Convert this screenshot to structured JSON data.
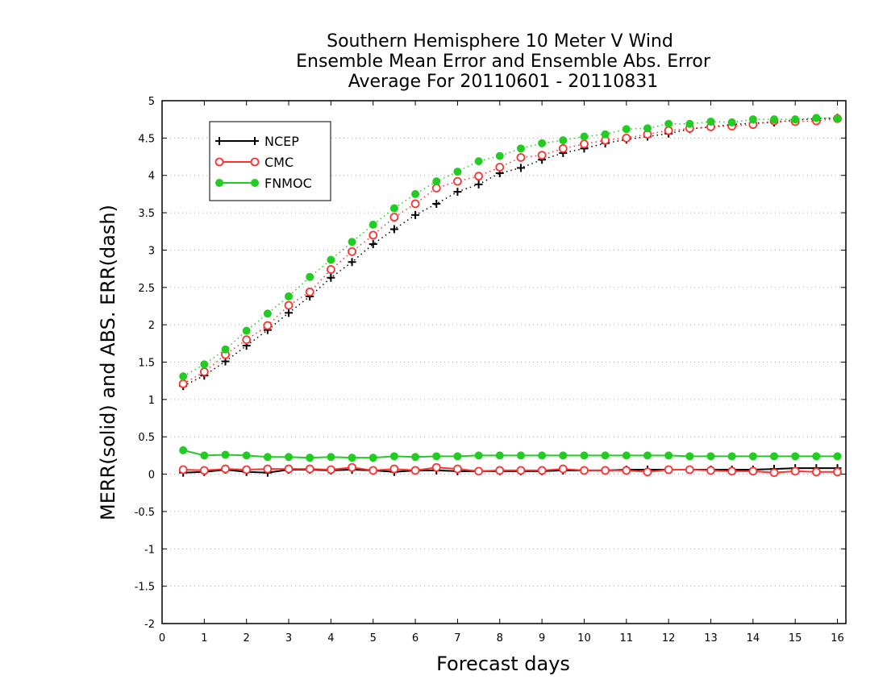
{
  "chart_data": {
    "type": "line",
    "title": [
      "Southern Hemisphere 10 Meter V Wind",
      "Ensemble Mean Error and Ensemble Abs. Error",
      "Average For 20110601 - 20110831"
    ],
    "xlabel": "Forecast days",
    "ylabel": "MERR(solid) and ABS. ERR(dash)",
    "xlim": [
      0,
      16.2
    ],
    "ylim": [
      -2,
      5
    ],
    "xticks": [
      0,
      1,
      2,
      3,
      4,
      5,
      6,
      7,
      8,
      9,
      10,
      11,
      12,
      13,
      14,
      15,
      16
    ],
    "yticks": [
      -2,
      -1.5,
      -1,
      -0.5,
      0,
      0.5,
      1,
      1.5,
      2,
      2.5,
      3,
      3.5,
      4,
      4.5,
      5
    ],
    "ytick_labels": [
      "-2",
      "-1.5",
      "-1",
      "-0.5",
      "0",
      "0.5",
      "1",
      "1.5",
      "2",
      "2.5",
      "3",
      "3.5",
      "4",
      "4.5",
      "5"
    ],
    "grid": "horizontal dotted",
    "legend_position": "top-left",
    "x": [
      0.5,
      1,
      1.5,
      2,
      2.5,
      3,
      3.5,
      4,
      4.5,
      5,
      5.5,
      6,
      6.5,
      7,
      7.5,
      8,
      8.5,
      9,
      9.5,
      10,
      10.5,
      11,
      11.5,
      12,
      12.5,
      13,
      13.5,
      14,
      14.5,
      15,
      15.5,
      16
    ],
    "series": [
      {
        "name": "NCEP",
        "color": "#000000",
        "marker": "plus",
        "merr": [
          0.02,
          0.03,
          0.06,
          0.03,
          0.02,
          0.06,
          0.06,
          0.05,
          0.06,
          0.05,
          0.03,
          0.05,
          0.05,
          0.04,
          0.04,
          0.04,
          0.04,
          0.04,
          0.05,
          0.05,
          0.05,
          0.06,
          0.06,
          0.06,
          0.06,
          0.06,
          0.06,
          0.06,
          0.07,
          0.08,
          0.08,
          0.08
        ],
        "abs_err": [
          1.18,
          1.32,
          1.51,
          1.72,
          1.93,
          2.16,
          2.38,
          2.63,
          2.84,
          3.08,
          3.28,
          3.47,
          3.62,
          3.78,
          3.88,
          4.03,
          4.1,
          4.21,
          4.3,
          4.36,
          4.43,
          4.48,
          4.52,
          4.56,
          4.62,
          4.65,
          4.68,
          4.7,
          4.71,
          4.74,
          4.76,
          4.77
        ]
      },
      {
        "name": "CMC",
        "color": "#ff3030",
        "marker": "open-circle",
        "merr": [
          0.06,
          0.05,
          0.07,
          0.06,
          0.07,
          0.07,
          0.07,
          0.06,
          0.09,
          0.05,
          0.07,
          0.05,
          0.09,
          0.07,
          0.04,
          0.05,
          0.05,
          0.05,
          0.07,
          0.05,
          0.05,
          0.05,
          0.03,
          0.06,
          0.06,
          0.05,
          0.04,
          0.04,
          0.02,
          0.04,
          0.03,
          0.03
        ],
        "abs_err": [
          1.21,
          1.37,
          1.6,
          1.8,
          1.99,
          2.26,
          2.44,
          2.74,
          2.98,
          3.2,
          3.44,
          3.62,
          3.83,
          3.92,
          3.99,
          4.11,
          4.24,
          4.27,
          4.36,
          4.42,
          4.47,
          4.5,
          4.55,
          4.6,
          4.63,
          4.65,
          4.66,
          4.68,
          4.73,
          4.72,
          4.73,
          4.76
        ]
      },
      {
        "name": "FNMOC",
        "color": "#22cc22",
        "marker": "filled-circle",
        "merr": [
          0.32,
          0.25,
          0.26,
          0.25,
          0.23,
          0.23,
          0.22,
          0.23,
          0.22,
          0.22,
          0.24,
          0.23,
          0.24,
          0.24,
          0.25,
          0.25,
          0.25,
          0.25,
          0.25,
          0.25,
          0.25,
          0.25,
          0.25,
          0.25,
          0.24,
          0.24,
          0.24,
          0.24,
          0.24,
          0.24,
          0.24,
          0.24
        ],
        "abs_err": [
          1.31,
          1.47,
          1.67,
          1.92,
          2.15,
          2.38,
          2.64,
          2.87,
          3.11,
          3.34,
          3.56,
          3.75,
          3.92,
          4.05,
          4.19,
          4.26,
          4.36,
          4.43,
          4.47,
          4.52,
          4.55,
          4.62,
          4.63,
          4.69,
          4.69,
          4.72,
          4.71,
          4.75,
          4.75,
          4.75,
          4.77,
          4.76
        ]
      }
    ]
  }
}
